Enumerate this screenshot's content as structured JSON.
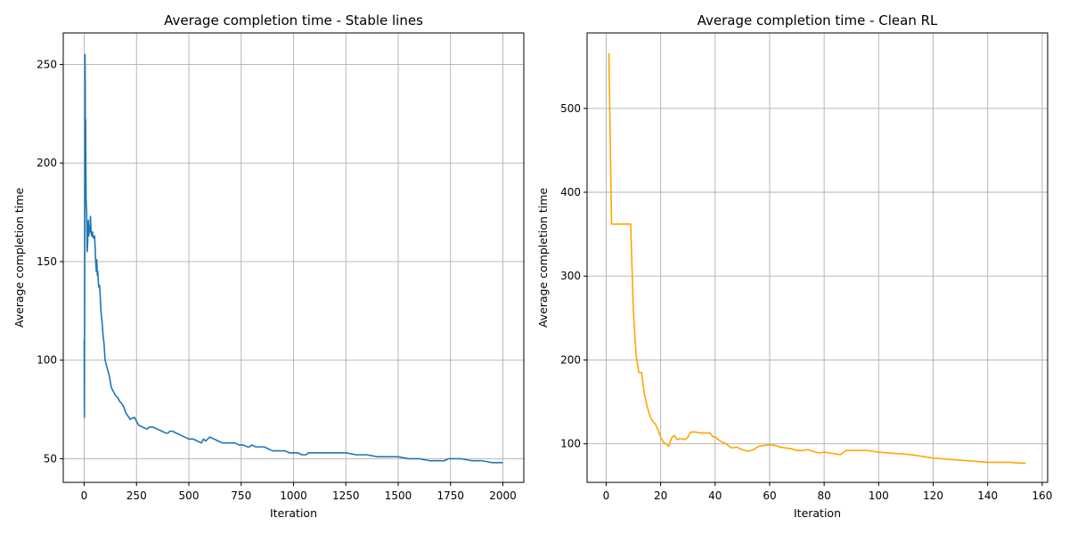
{
  "chart_data": [
    {
      "type": "line",
      "title": "Average completion time - Stable lines",
      "xlabel": "Iteration",
      "ylabel": "Average completion time",
      "xlim": [
        -100,
        2100
      ],
      "ylim": [
        38,
        266
      ],
      "xticks": [
        0,
        250,
        500,
        750,
        1000,
        1250,
        1500,
        1750,
        2000
      ],
      "yticks": [
        50,
        100,
        150,
        200,
        250
      ],
      "grid": true,
      "color": "#1f77b4",
      "series": [
        {
          "x": [
            0,
            1,
            2,
            3,
            4,
            5,
            6,
            7,
            8,
            9,
            10,
            12,
            14,
            16,
            18,
            20,
            22,
            25,
            28,
            30,
            33,
            36,
            40,
            43,
            46,
            50,
            55,
            58,
            60,
            63,
            65,
            68,
            70,
            73,
            75,
            80,
            85,
            90,
            95,
            100,
            110,
            120,
            130,
            140,
            150,
            160,
            170,
            180,
            190,
            200,
            220,
            240,
            250,
            260,
            280,
            300,
            310,
            320,
            330,
            350,
            370,
            390,
            400,
            410,
            420,
            440,
            460,
            480,
            500,
            520,
            540,
            560,
            570,
            580,
            590,
            600,
            620,
            640,
            660,
            680,
            700,
            720,
            740,
            760,
            780,
            790,
            800,
            820,
            840,
            860,
            880,
            900,
            920,
            940,
            960,
            980,
            1000,
            1020,
            1040,
            1060,
            1070,
            1080,
            1100,
            1150,
            1200,
            1250,
            1300,
            1350,
            1400,
            1450,
            1500,
            1550,
            1600,
            1650,
            1700,
            1720,
            1740,
            1800,
            1850,
            1900,
            1950,
            2000
          ],
          "values": [
            110,
            71,
            120,
            160,
            255,
            240,
            180,
            222,
            200,
            182,
            180,
            175,
            155,
            158,
            165,
            171,
            163,
            168,
            165,
            173,
            165,
            163,
            165,
            162,
            162,
            163,
            150,
            145,
            151,
            143,
            145,
            139,
            137,
            138,
            136,
            125,
            120,
            113,
            108,
            100,
            96,
            92,
            86,
            84,
            82,
            81,
            79,
            78,
            76,
            73,
            70,
            71,
            69,
            67,
            66,
            65,
            66,
            66,
            66,
            65,
            64,
            63,
            63,
            64,
            64,
            63,
            62,
            61,
            60,
            60,
            59,
            58,
            60,
            59,
            60,
            61,
            60,
            59,
            58,
            58,
            58,
            58,
            57,
            57,
            56,
            56,
            57,
            56,
            56,
            56,
            55,
            54,
            54,
            54,
            54,
            53,
            53,
            53,
            52,
            52,
            53,
            53,
            53,
            53,
            53,
            53,
            52,
            52,
            51,
            51,
            51,
            50,
            50,
            49,
            49,
            49,
            50,
            50,
            49,
            49,
            48,
            48
          ]
        }
      ]
    },
    {
      "type": "line",
      "title": "Average completion time - Clean RL",
      "xlabel": "Iteration",
      "ylabel": "Average completion time",
      "xlim": [
        -7,
        162
      ],
      "ylim": [
        54,
        590
      ],
      "xticks": [
        0,
        20,
        40,
        60,
        80,
        100,
        120,
        140,
        160
      ],
      "yticks": [
        100,
        200,
        300,
        400,
        500
      ],
      "grid": true,
      "color": "#ffa500",
      "series": [
        {
          "x": [
            1,
            2,
            3,
            4,
            5,
            6,
            7,
            8,
            9,
            10,
            11,
            12,
            13,
            14,
            15,
            16,
            17,
            18,
            19,
            20,
            21,
            22,
            23,
            24,
            25,
            26,
            27,
            28,
            29,
            30,
            31,
            32,
            33,
            34,
            35,
            36,
            37,
            38,
            39,
            40,
            42,
            44,
            46,
            48,
            50,
            52,
            54,
            56,
            58,
            60,
            62,
            64,
            66,
            68,
            70,
            72,
            74,
            76,
            78,
            80,
            82,
            84,
            86,
            88,
            90,
            92,
            94,
            96,
            98,
            100,
            104,
            108,
            112,
            116,
            120,
            124,
            128,
            132,
            136,
            140,
            144,
            148,
            152,
            154
          ],
          "values": [
            566,
            362,
            362,
            362,
            362,
            362,
            362,
            362,
            362,
            258,
            205,
            185,
            185,
            160,
            145,
            134,
            127,
            124,
            117,
            108,
            102,
            100,
            97,
            107,
            110,
            105,
            106,
            106,
            105,
            108,
            114,
            114,
            114,
            113,
            113,
            113,
            113,
            113,
            109,
            108,
            103,
            100,
            95,
            96,
            93,
            91,
            93,
            97,
            98,
            99,
            98,
            96,
            95,
            94,
            92,
            92,
            93,
            91,
            89,
            90,
            89,
            88,
            87,
            92,
            92,
            92,
            92,
            92,
            91,
            90,
            89,
            88,
            87,
            85,
            83,
            82,
            81,
            80,
            79,
            78,
            78,
            78,
            77,
            77
          ]
        }
      ]
    }
  ]
}
